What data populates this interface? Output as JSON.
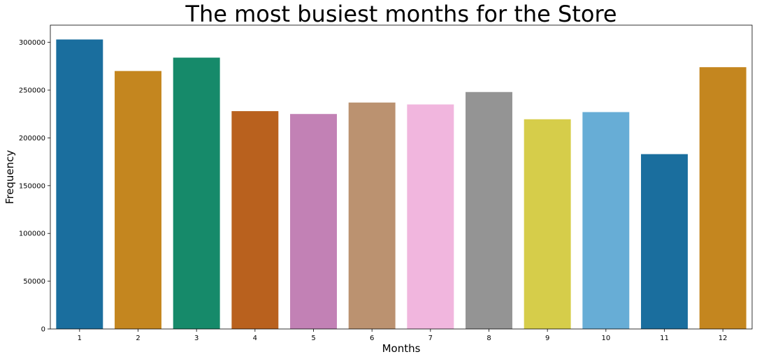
{
  "chart_data": {
    "type": "bar",
    "title": "The most busiest months for the Store",
    "xlabel": "Months",
    "ylabel": "Frequency",
    "categories": [
      "1",
      "2",
      "3",
      "4",
      "5",
      "6",
      "7",
      "8",
      "9",
      "10",
      "11",
      "12"
    ],
    "values": [
      303000,
      270000,
      284000,
      228000,
      225000,
      237000,
      235000,
      248000,
      219500,
      227000,
      183000,
      274000
    ],
    "colors": [
      "#1a6e9e",
      "#c4861f",
      "#168a6a",
      "#b9611e",
      "#c281b5",
      "#bb9270",
      "#f1b6de",
      "#949494",
      "#d6cd4a",
      "#67add6",
      "#1a6e9e",
      "#c4861f"
    ],
    "ylim": [
      0,
      318000
    ],
    "yticks": [
      0,
      50000,
      100000,
      150000,
      200000,
      250000,
      300000
    ],
    "ytick_labels": [
      "0",
      "50000",
      "100000",
      "150000",
      "200000",
      "250000",
      "300000"
    ],
    "grid": false,
    "legend": false
  }
}
